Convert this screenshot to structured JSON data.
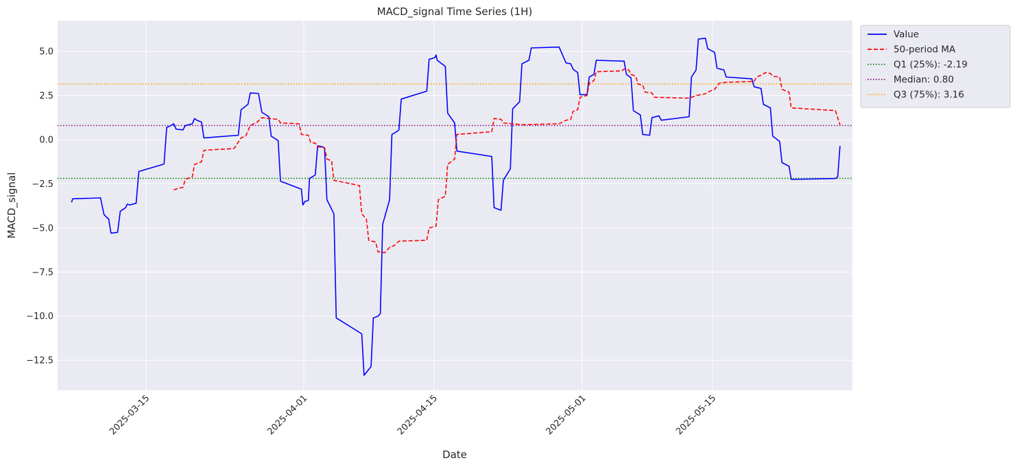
{
  "chart_data": {
    "type": "line",
    "title": "MACD_signal Time Series (1H)",
    "xlabel": "Date",
    "ylabel": "MACD_signal",
    "x_range": [
      "2025-03-05T12:00",
      "2025-05-30T02:00"
    ],
    "ylim": [
      -14.2,
      6.75
    ],
    "x_ticks": [
      "2025-03-15",
      "2025-04-01",
      "2025-04-15",
      "2025-05-01",
      "2025-05-15"
    ],
    "y_ticks": [
      5.0,
      2.5,
      0.0,
      -2.5,
      -5.0,
      -7.5,
      -10.0,
      -12.5
    ],
    "y_tick_labels": [
      "5.0",
      "2.5",
      "0.0",
      "−2.5",
      "−5.0",
      "−7.5",
      "−10.0",
      "−12.5"
    ],
    "grid": true,
    "legend_position": "outside-top-right",
    "series": [
      {
        "name": "Value",
        "color": "#0000ff",
        "style": "solid",
        "points": [
          [
            "2025-03-07T00:00",
            -3.55
          ],
          [
            "2025-03-07T03:00",
            -3.35
          ],
          [
            "2025-03-10T03:00",
            -3.3
          ],
          [
            "2025-03-10T12:00",
            -4.25
          ],
          [
            "2025-03-11T00:00",
            -4.5
          ],
          [
            "2025-03-11T06:00",
            -5.3
          ],
          [
            "2025-03-11T23:00",
            -5.25
          ],
          [
            "2025-03-12T06:00",
            -4.05
          ],
          [
            "2025-03-12T20:00",
            -3.85
          ],
          [
            "2025-03-13T00:00",
            -3.65
          ],
          [
            "2025-03-13T06:00",
            -3.7
          ],
          [
            "2025-03-13T23:00",
            -3.6
          ],
          [
            "2025-03-14T06:00",
            -1.8
          ],
          [
            "2025-03-16T23:00",
            -1.38
          ],
          [
            "2025-03-17T06:00",
            0.7
          ],
          [
            "2025-03-17T12:00",
            0.75
          ],
          [
            "2025-03-18T00:00",
            0.9
          ],
          [
            "2025-03-18T06:00",
            0.6
          ],
          [
            "2025-03-19T00:00",
            0.55
          ],
          [
            "2025-03-19T06:00",
            0.8
          ],
          [
            "2025-03-20T00:00",
            0.9
          ],
          [
            "2025-03-20T06:00",
            1.2
          ],
          [
            "2025-03-20T12:00",
            1.1
          ],
          [
            "2025-03-21T00:00",
            1.0
          ],
          [
            "2025-03-21T06:00",
            0.1
          ],
          [
            "2025-03-24T23:00",
            0.25
          ],
          [
            "2025-03-25T06:00",
            1.7
          ],
          [
            "2025-03-26T00:00",
            2.0
          ],
          [
            "2025-03-26T06:00",
            2.65
          ],
          [
            "2025-03-27T03:00",
            2.62
          ],
          [
            "2025-03-27T12:00",
            1.55
          ],
          [
            "2025-03-28T06:00",
            1.3
          ],
          [
            "2025-03-28T12:00",
            0.2
          ],
          [
            "2025-03-29T06:00",
            -0.05
          ],
          [
            "2025-03-29T12:00",
            -2.35
          ],
          [
            "2025-03-31T18:00",
            -2.8
          ],
          [
            "2025-03-31T22:00",
            -3.7
          ],
          [
            "2025-04-01T03:00",
            -3.5
          ],
          [
            "2025-04-01T12:00",
            -3.45
          ],
          [
            "2025-04-01T15:00",
            -2.2
          ],
          [
            "2025-04-02T06:00",
            -2.0
          ],
          [
            "2025-04-02T12:00",
            -0.35
          ],
          [
            "2025-04-03T00:00",
            -0.4
          ],
          [
            "2025-04-03T06:00",
            -0.5
          ],
          [
            "2025-04-03T12:00",
            -3.4
          ],
          [
            "2025-04-04T06:00",
            -4.2
          ],
          [
            "2025-04-04T12:00",
            -10.1
          ],
          [
            "2025-04-07T06:00",
            -11.0
          ],
          [
            "2025-04-07T12:00",
            -13.35
          ],
          [
            "2025-04-08T06:00",
            -12.85
          ],
          [
            "2025-04-08T12:00",
            -10.1
          ],
          [
            "2025-04-09T00:00",
            -10.0
          ],
          [
            "2025-04-09T06:00",
            -9.85
          ],
          [
            "2025-04-09T12:00",
            -4.8
          ],
          [
            "2025-04-10T06:00",
            -3.4
          ],
          [
            "2025-04-10T12:00",
            0.3
          ],
          [
            "2025-04-11T00:00",
            0.45
          ],
          [
            "2025-04-11T06:00",
            0.55
          ],
          [
            "2025-04-11T12:00",
            2.3
          ],
          [
            "2025-04-14T06:00",
            2.75
          ],
          [
            "2025-04-14T12:00",
            4.55
          ],
          [
            "2025-04-15T03:00",
            4.65
          ],
          [
            "2025-04-15T06:00",
            4.8
          ],
          [
            "2025-04-15T09:00",
            4.5
          ],
          [
            "2025-04-16T06:00",
            4.15
          ],
          [
            "2025-04-16T12:00",
            1.5
          ],
          [
            "2025-04-17T06:00",
            0.95
          ],
          [
            "2025-04-17T12:00",
            -0.65
          ],
          [
            "2025-04-21T06:00",
            -0.95
          ],
          [
            "2025-04-21T12:00",
            -3.85
          ],
          [
            "2025-04-22T06:00",
            -4.0
          ],
          [
            "2025-04-22T12:00",
            -2.3
          ],
          [
            "2025-04-23T06:00",
            -1.65
          ],
          [
            "2025-04-23T12:00",
            1.75
          ],
          [
            "2025-04-24T06:00",
            2.15
          ],
          [
            "2025-04-24T12:00",
            4.3
          ],
          [
            "2025-04-25T06:00",
            4.5
          ],
          [
            "2025-04-25T12:00",
            5.2
          ],
          [
            "2025-04-28T12:00",
            5.25
          ],
          [
            "2025-04-29T06:00",
            4.35
          ],
          [
            "2025-04-29T18:00",
            4.3
          ],
          [
            "2025-04-30T00:00",
            4.0
          ],
          [
            "2025-04-30T06:00",
            3.9
          ],
          [
            "2025-04-30T12:00",
            3.8
          ],
          [
            "2025-04-30T18:00",
            2.55
          ],
          [
            "2025-05-01T12:00",
            2.55
          ],
          [
            "2025-05-01T18:00",
            3.55
          ],
          [
            "2025-05-02T06:00",
            3.7
          ],
          [
            "2025-05-02T12:00",
            4.5
          ],
          [
            "2025-05-05T12:00",
            4.45
          ],
          [
            "2025-05-05T18:00",
            3.7
          ],
          [
            "2025-05-06T06:00",
            3.5
          ],
          [
            "2025-05-06T12:00",
            1.65
          ],
          [
            "2025-05-07T06:00",
            1.4
          ],
          [
            "2025-05-07T12:00",
            0.3
          ],
          [
            "2025-05-08T06:00",
            0.25
          ],
          [
            "2025-05-08T12:00",
            1.25
          ],
          [
            "2025-05-09T06:00",
            1.35
          ],
          [
            "2025-05-09T12:00",
            1.1
          ],
          [
            "2025-05-12T12:00",
            1.3
          ],
          [
            "2025-05-12T18:00",
            3.55
          ],
          [
            "2025-05-13T06:00",
            3.95
          ],
          [
            "2025-05-13T12:00",
            5.7
          ],
          [
            "2025-05-14T06:00",
            5.75
          ],
          [
            "2025-05-14T12:00",
            5.15
          ],
          [
            "2025-05-15T06:00",
            4.95
          ],
          [
            "2025-05-15T12:00",
            4.05
          ],
          [
            "2025-05-16T06:00",
            3.95
          ],
          [
            "2025-05-16T12:00",
            3.55
          ],
          [
            "2025-05-19T06:00",
            3.45
          ],
          [
            "2025-05-19T12:00",
            3.0
          ],
          [
            "2025-05-20T06:00",
            2.9
          ],
          [
            "2025-05-20T12:00",
            2.0
          ],
          [
            "2025-05-21T06:00",
            1.8
          ],
          [
            "2025-05-21T12:00",
            0.2
          ],
          [
            "2025-05-22T06:00",
            -0.1
          ],
          [
            "2025-05-22T12:00",
            -1.3
          ],
          [
            "2025-05-23T06:00",
            -1.5
          ],
          [
            "2025-05-23T12:00",
            -2.25
          ],
          [
            "2025-05-28T06:00",
            -2.2
          ],
          [
            "2025-05-28T12:00",
            -2.1
          ],
          [
            "2025-05-28T18:00",
            -0.35
          ]
        ]
      },
      {
        "name": "50-period MA",
        "color": "#ff0000",
        "style": "dashed",
        "points": [
          [
            "2025-03-18T00:00",
            -2.85
          ],
          [
            "2025-03-18T12:00",
            -2.75
          ],
          [
            "2025-03-19T00:00",
            -2.7
          ],
          [
            "2025-03-19T06:00",
            -2.25
          ],
          [
            "2025-03-20T00:00",
            -2.1
          ],
          [
            "2025-03-20T06:00",
            -1.4
          ],
          [
            "2025-03-21T00:00",
            -1.25
          ],
          [
            "2025-03-21T06:00",
            -0.6
          ],
          [
            "2025-03-24T12:00",
            -0.5
          ],
          [
            "2025-03-25T06:00",
            0.1
          ],
          [
            "2025-03-25T18:00",
            0.2
          ],
          [
            "2025-03-26T06:00",
            0.8
          ],
          [
            "2025-03-27T00:00",
            1.0
          ],
          [
            "2025-03-27T12:00",
            1.25
          ],
          [
            "2025-03-28T06:00",
            1.2
          ],
          [
            "2025-03-29T06:00",
            1.15
          ],
          [
            "2025-03-29T12:00",
            0.95
          ],
          [
            "2025-03-31T12:00",
            0.9
          ],
          [
            "2025-03-31T18:00",
            0.3
          ],
          [
            "2025-04-01T12:00",
            0.25
          ],
          [
            "2025-04-01T18:00",
            -0.15
          ],
          [
            "2025-04-02T06:00",
            -0.2
          ],
          [
            "2025-04-02T12:00",
            -0.4
          ],
          [
            "2025-04-03T06:00",
            -0.45
          ],
          [
            "2025-04-03T12:00",
            -1.1
          ],
          [
            "2025-04-04T00:00",
            -1.2
          ],
          [
            "2025-04-04T06:00",
            -2.3
          ],
          [
            "2025-04-07T00:00",
            -2.6
          ],
          [
            "2025-04-07T06:00",
            -4.2
          ],
          [
            "2025-04-07T18:00",
            -4.5
          ],
          [
            "2025-04-08T00:00",
            -5.7
          ],
          [
            "2025-04-08T18:00",
            -5.8
          ],
          [
            "2025-04-09T00:00",
            -6.35
          ],
          [
            "2025-04-09T18:00",
            -6.4
          ],
          [
            "2025-04-10T06:00",
            -6.1
          ],
          [
            "2025-04-10T18:00",
            -6.0
          ],
          [
            "2025-04-11T06:00",
            -5.75
          ],
          [
            "2025-04-14T06:00",
            -5.7
          ],
          [
            "2025-04-14T12:00",
            -5.0
          ],
          [
            "2025-04-15T06:00",
            -4.9
          ],
          [
            "2025-04-15T12:00",
            -3.4
          ],
          [
            "2025-04-16T06:00",
            -3.2
          ],
          [
            "2025-04-16T12:00",
            -1.4
          ],
          [
            "2025-04-17T06:00",
            -1.1
          ],
          [
            "2025-04-17T12:00",
            0.3
          ],
          [
            "2025-04-21T06:00",
            0.45
          ],
          [
            "2025-04-21T12:00",
            1.2
          ],
          [
            "2025-04-22T06:00",
            1.15
          ],
          [
            "2025-04-22T12:00",
            0.95
          ],
          [
            "2025-04-24T12:00",
            0.85
          ],
          [
            "2025-04-28T12:00",
            0.9
          ],
          [
            "2025-04-29T06:00",
            1.1
          ],
          [
            "2025-04-29T18:00",
            1.15
          ],
          [
            "2025-04-30T00:00",
            1.6
          ],
          [
            "2025-04-30T12:00",
            1.7
          ],
          [
            "2025-04-30T18:00",
            2.4
          ],
          [
            "2025-05-01T12:00",
            2.5
          ],
          [
            "2025-05-01T18:00",
            3.2
          ],
          [
            "2025-05-02T06:00",
            3.35
          ],
          [
            "2025-05-02T12:00",
            3.85
          ],
          [
            "2025-05-05T06:00",
            3.9
          ],
          [
            "2025-05-05T12:00",
            4.0
          ],
          [
            "2025-05-06T00:00",
            3.95
          ],
          [
            "2025-05-06T06:00",
            3.7
          ],
          [
            "2025-05-06T18:00",
            3.6
          ],
          [
            "2025-05-07T00:00",
            3.15
          ],
          [
            "2025-05-07T12:00",
            3.1
          ],
          [
            "2025-05-07T18:00",
            2.7
          ],
          [
            "2025-05-08T12:00",
            2.65
          ],
          [
            "2025-05-08T18:00",
            2.4
          ],
          [
            "2025-05-12T12:00",
            2.35
          ],
          [
            "2025-05-13T06:00",
            2.5
          ],
          [
            "2025-05-14T06:00",
            2.6
          ],
          [
            "2025-05-14T18:00",
            2.75
          ],
          [
            "2025-05-15T06:00",
            2.85
          ],
          [
            "2025-05-15T18:00",
            3.2
          ],
          [
            "2025-05-16T12:00",
            3.25
          ],
          [
            "2025-05-19T12:00",
            3.3
          ],
          [
            "2025-05-19T18:00",
            3.55
          ],
          [
            "2025-05-20T06:00",
            3.65
          ],
          [
            "2025-05-20T18:00",
            3.8
          ],
          [
            "2025-05-21T06:00",
            3.75
          ],
          [
            "2025-05-21T12:00",
            3.6
          ],
          [
            "2025-05-22T06:00",
            3.55
          ],
          [
            "2025-05-22T12:00",
            2.85
          ],
          [
            "2025-05-23T06:00",
            2.7
          ],
          [
            "2025-05-23T12:00",
            1.8
          ],
          [
            "2025-05-28T06:00",
            1.65
          ],
          [
            "2025-05-28T18:00",
            0.85
          ]
        ]
      }
    ],
    "hlines": [
      {
        "name": "Q1 (25%): -2.19",
        "value": -2.19,
        "color": "#008000",
        "style": "dotted"
      },
      {
        "name": "Median: 0.80",
        "value": 0.8,
        "color": "#800080",
        "style": "dotted"
      },
      {
        "name": "Q3 (75%): 3.16",
        "value": 3.16,
        "color": "#ffa500",
        "style": "dotted"
      }
    ]
  }
}
